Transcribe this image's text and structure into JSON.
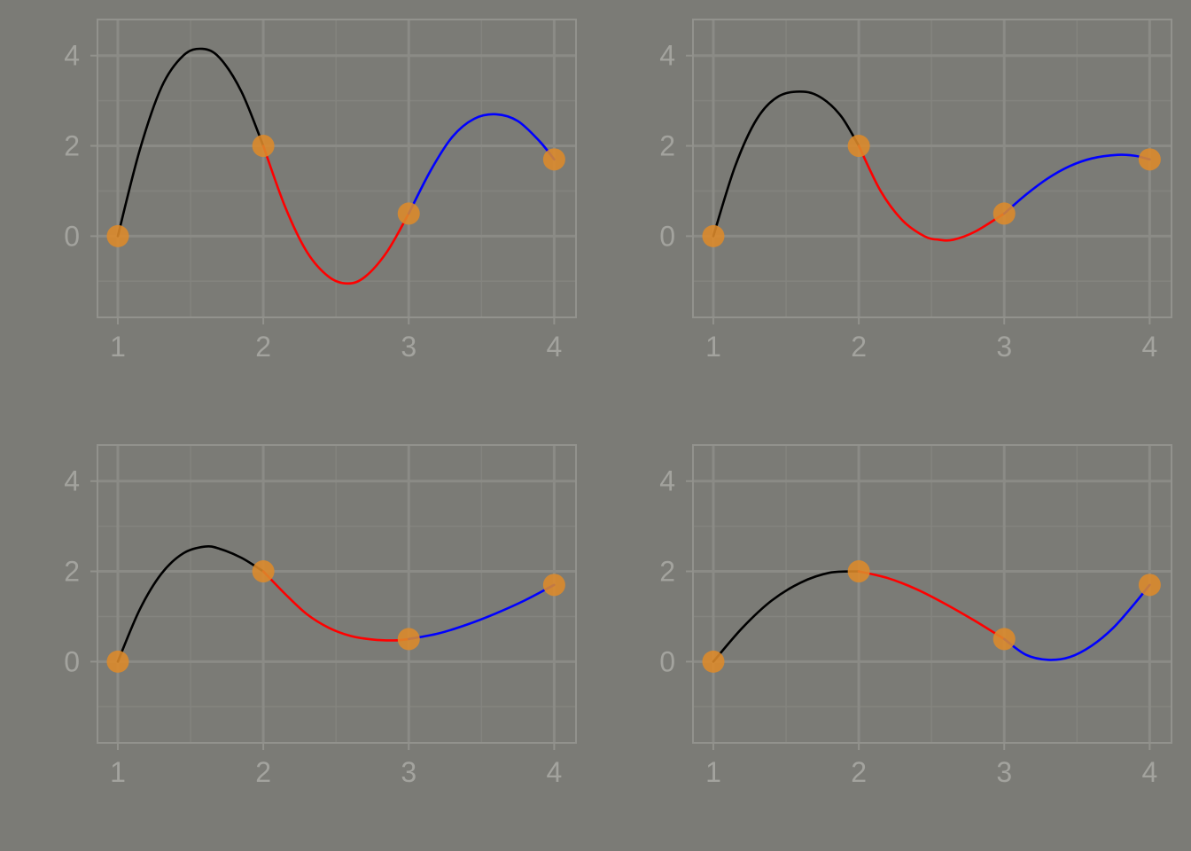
{
  "chart_data": [
    {
      "type": "line",
      "xlim": [
        0.86,
        4.15
      ],
      "ylim": [
        -1.8,
        4.8
      ],
      "xticks": [
        "1",
        "2",
        "3",
        "4"
      ],
      "yticks": [
        "0",
        "2",
        "4"
      ],
      "grid": true,
      "points": {
        "x": [
          1,
          2,
          3,
          4
        ],
        "y": [
          0,
          2,
          0.5,
          1.7
        ],
        "color": "#dd8a2a"
      },
      "series": [
        {
          "color": "#000000",
          "x": [
            1.0,
            1.15,
            1.3,
            1.45,
            1.58,
            1.7,
            1.85,
            2.0
          ],
          "values": [
            0.0,
            1.9,
            3.3,
            4.0,
            4.15,
            3.95,
            3.2,
            2.0
          ]
        },
        {
          "color": "#ff0000",
          "x": [
            2.0,
            2.15,
            2.3,
            2.45,
            2.58,
            2.7,
            2.85,
            3.0
          ],
          "values": [
            2.0,
            0.65,
            -0.35,
            -0.9,
            -1.05,
            -0.9,
            -0.35,
            0.5
          ]
        },
        {
          "color": "#0000ff",
          "x": [
            3.0,
            3.15,
            3.3,
            3.45,
            3.6,
            3.75,
            3.9,
            4.0
          ],
          "values": [
            0.5,
            1.45,
            2.2,
            2.6,
            2.7,
            2.55,
            2.1,
            1.7
          ]
        }
      ]
    },
    {
      "type": "line",
      "xlim": [
        0.86,
        4.15
      ],
      "ylim": [
        -1.8,
        4.8
      ],
      "xticks": [
        "1",
        "2",
        "3",
        "4"
      ],
      "yticks": [
        "0",
        "2",
        "4"
      ],
      "grid": true,
      "points": {
        "x": [
          1,
          2,
          3,
          4
        ],
        "y": [
          0,
          2,
          0.5,
          1.7
        ],
        "color": "#dd8a2a"
      },
      "series": [
        {
          "color": "#000000",
          "x": [
            1.0,
            1.15,
            1.3,
            1.45,
            1.62,
            1.75,
            1.88,
            2.0
          ],
          "values": [
            0.0,
            1.55,
            2.6,
            3.1,
            3.2,
            3.05,
            2.65,
            2.0
          ]
        },
        {
          "color": "#ff0000",
          "x": [
            2.0,
            2.15,
            2.3,
            2.45,
            2.55,
            2.65,
            2.8,
            3.0
          ],
          "values": [
            2.0,
            1.0,
            0.35,
            0.0,
            -0.08,
            -0.08,
            0.1,
            0.5
          ]
        },
        {
          "color": "#0000ff",
          "x": [
            3.0,
            3.15,
            3.3,
            3.45,
            3.6,
            3.78,
            3.9,
            4.0
          ],
          "values": [
            0.5,
            0.92,
            1.28,
            1.55,
            1.72,
            1.8,
            1.78,
            1.7
          ]
        }
      ]
    },
    {
      "type": "line",
      "xlim": [
        0.86,
        4.15
      ],
      "ylim": [
        -1.8,
        4.8
      ],
      "xticks": [
        "1",
        "2",
        "3",
        "4"
      ],
      "yticks": [
        "0",
        "2",
        "4"
      ],
      "grid": true,
      "points": {
        "x": [
          1,
          2,
          3,
          4
        ],
        "y": [
          0,
          2,
          0.5,
          1.7
        ],
        "color": "#dd8a2a"
      },
      "series": [
        {
          "color": "#000000",
          "x": [
            1.0,
            1.15,
            1.3,
            1.45,
            1.6,
            1.7,
            1.85,
            2.0
          ],
          "values": [
            0.0,
            1.15,
            1.95,
            2.4,
            2.55,
            2.5,
            2.3,
            2.0
          ]
        },
        {
          "color": "#ff0000",
          "x": [
            2.0,
            2.15,
            2.3,
            2.45,
            2.6,
            2.75,
            2.9,
            3.0
          ],
          "values": [
            2.0,
            1.5,
            1.05,
            0.75,
            0.57,
            0.49,
            0.47,
            0.5
          ]
        },
        {
          "color": "#0000ff",
          "x": [
            3.0,
            3.2,
            3.4,
            3.6,
            3.8,
            4.0
          ],
          "values": [
            0.5,
            0.62,
            0.82,
            1.07,
            1.36,
            1.7
          ]
        }
      ]
    },
    {
      "type": "line",
      "xlim": [
        0.86,
        4.15
      ],
      "ylim": [
        -1.8,
        4.8
      ],
      "xticks": [
        "1",
        "2",
        "3",
        "4"
      ],
      "yticks": [
        "0",
        "2",
        "4"
      ],
      "grid": true,
      "points": {
        "x": [
          1,
          2,
          3,
          4
        ],
        "y": [
          0,
          2,
          0.5,
          1.7
        ],
        "color": "#dd8a2a"
      },
      "series": [
        {
          "color": "#000000",
          "x": [
            1.0,
            1.2,
            1.4,
            1.6,
            1.8,
            2.0
          ],
          "values": [
            0.0,
            0.75,
            1.35,
            1.75,
            1.97,
            2.0
          ]
        },
        {
          "color": "#ff0000",
          "x": [
            2.0,
            2.2,
            2.4,
            2.6,
            2.8,
            3.0
          ],
          "values": [
            2.0,
            1.85,
            1.6,
            1.27,
            0.9,
            0.5
          ]
        },
        {
          "color": "#0000ff",
          "x": [
            3.0,
            3.15,
            3.3,
            3.45,
            3.6,
            3.75,
            3.9,
            4.0
          ],
          "values": [
            0.5,
            0.15,
            0.04,
            0.1,
            0.35,
            0.75,
            1.3,
            1.7
          ]
        }
      ]
    }
  ]
}
